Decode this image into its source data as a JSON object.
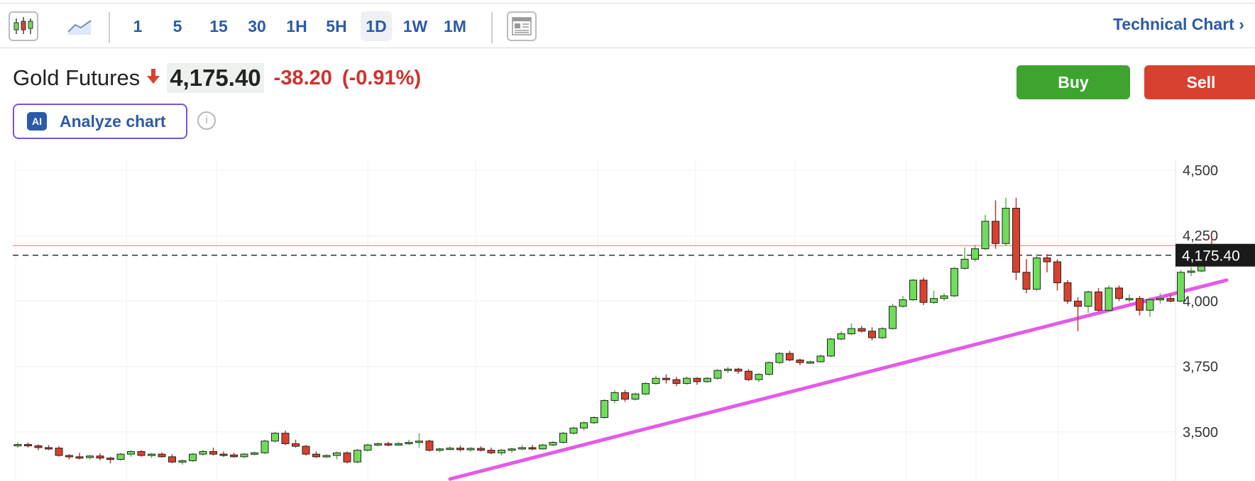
{
  "toolbar": {
    "icons": [
      "candlestick-icon",
      "area-chart-icon",
      "layout-icon"
    ],
    "intervals": [
      "1",
      "5",
      "15",
      "30",
      "1H",
      "5H",
      "1D",
      "1W",
      "1M"
    ],
    "active_interval": "1D",
    "technical_chart_label": "Technical Chart"
  },
  "instrument": {
    "name": "Gold Futures",
    "price": "4,175.40",
    "change": "-38.20",
    "change_pct": "(-0.91%)",
    "direction_icon": "arrow-down-icon"
  },
  "actions": {
    "buy": "Buy",
    "sell": "Sell"
  },
  "ai": {
    "badge": "AI",
    "label": "Analyze chart",
    "info_icon": "info-icon"
  },
  "colors": {
    "up": "#6fdc5a",
    "down": "#d9412f",
    "accent": "#2b5ba8",
    "trendline": "#e45ae8",
    "last_price_bg": "#1a1a1a"
  },
  "chart_data": {
    "type": "candlestick",
    "y_ticks": [
      "4,500",
      "4,250",
      "4,000",
      "3,750",
      "3,500"
    ],
    "ylim": [
      3320,
      4530
    ],
    "last_price_label": "4,175.40",
    "last_price": 4175.4,
    "resistance_level": 4212,
    "trendline": {
      "from_index": 42,
      "from_value": 3320,
      "to_index": 114,
      "to_value": 4080
    },
    "grid": true,
    "ohlc": [
      [
        3450,
        3460,
        3440,
        3452
      ],
      [
        3452,
        3460,
        3440,
        3447
      ],
      [
        3447,
        3452,
        3430,
        3440
      ],
      [
        3440,
        3450,
        3430,
        3438
      ],
      [
        3438,
        3445,
        3405,
        3410
      ],
      [
        3410,
        3415,
        3395,
        3405
      ],
      [
        3405,
        3420,
        3395,
        3402
      ],
      [
        3402,
        3412,
        3395,
        3408
      ],
      [
        3408,
        3418,
        3392,
        3400
      ],
      [
        3400,
        3405,
        3380,
        3395
      ],
      [
        3395,
        3420,
        3390,
        3415
      ],
      [
        3415,
        3430,
        3405,
        3425
      ],
      [
        3425,
        3430,
        3405,
        3410
      ],
      [
        3410,
        3420,
        3400,
        3415
      ],
      [
        3415,
        3422,
        3402,
        3405
      ],
      [
        3405,
        3415,
        3380,
        3385
      ],
      [
        3385,
        3395,
        3375,
        3390
      ],
      [
        3390,
        3420,
        3385,
        3415
      ],
      [
        3415,
        3432,
        3410,
        3425
      ],
      [
        3425,
        3440,
        3410,
        3415
      ],
      [
        3415,
        3425,
        3405,
        3412
      ],
      [
        3412,
        3420,
        3402,
        3405
      ],
      [
        3405,
        3420,
        3400,
        3415
      ],
      [
        3415,
        3425,
        3410,
        3420
      ],
      [
        3420,
        3470,
        3415,
        3465
      ],
      [
        3465,
        3500,
        3460,
        3495
      ],
      [
        3495,
        3505,
        3450,
        3455
      ],
      [
        3455,
        3470,
        3440,
        3445
      ],
      [
        3445,
        3450,
        3410,
        3415
      ],
      [
        3415,
        3425,
        3400,
        3405
      ],
      [
        3405,
        3415,
        3400,
        3410
      ],
      [
        3410,
        3425,
        3395,
        3420
      ],
      [
        3420,
        3425,
        3380,
        3385
      ],
      [
        3385,
        3435,
        3380,
        3430
      ],
      [
        3430,
        3455,
        3425,
        3450
      ],
      [
        3450,
        3460,
        3445,
        3455
      ],
      [
        3455,
        3462,
        3445,
        3452
      ],
      [
        3452,
        3462,
        3450,
        3455
      ],
      [
        3455,
        3470,
        3450,
        3460
      ],
      [
        3460,
        3495,
        3440,
        3465
      ],
      [
        3465,
        3470,
        3425,
        3430
      ],
      [
        3430,
        3440,
        3422,
        3435
      ],
      [
        3435,
        3445,
        3430,
        3438
      ],
      [
        3438,
        3448,
        3425,
        3432
      ],
      [
        3432,
        3442,
        3425,
        3437
      ],
      [
        3437,
        3445,
        3425,
        3430
      ],
      [
        3430,
        3440,
        3415,
        3420
      ],
      [
        3420,
        3435,
        3410,
        3430
      ],
      [
        3430,
        3440,
        3420,
        3435
      ],
      [
        3435,
        3450,
        3430,
        3440
      ],
      [
        3440,
        3450,
        3430,
        3435
      ],
      [
        3435,
        3455,
        3432,
        3450
      ],
      [
        3450,
        3465,
        3445,
        3460
      ],
      [
        3460,
        3500,
        3455,
        3495
      ],
      [
        3495,
        3520,
        3490,
        3515
      ],
      [
        3515,
        3540,
        3505,
        3535
      ],
      [
        3535,
        3560,
        3530,
        3555
      ],
      [
        3555,
        3625,
        3550,
        3620
      ],
      [
        3620,
        3660,
        3610,
        3650
      ],
      [
        3650,
        3660,
        3615,
        3625
      ],
      [
        3625,
        3650,
        3620,
        3645
      ],
      [
        3645,
        3690,
        3640,
        3685
      ],
      [
        3685,
        3715,
        3680,
        3705
      ],
      [
        3705,
        3720,
        3685,
        3700
      ],
      [
        3700,
        3710,
        3675,
        3685
      ],
      [
        3685,
        3712,
        3680,
        3705
      ],
      [
        3705,
        3708,
        3680,
        3692
      ],
      [
        3692,
        3710,
        3688,
        3705
      ],
      [
        3705,
        3740,
        3700,
        3735
      ],
      [
        3735,
        3748,
        3725,
        3740
      ],
      [
        3740,
        3745,
        3722,
        3732
      ],
      [
        3732,
        3740,
        3695,
        3700
      ],
      [
        3700,
        3725,
        3690,
        3720
      ],
      [
        3720,
        3770,
        3715,
        3765
      ],
      [
        3765,
        3805,
        3760,
        3800
      ],
      [
        3800,
        3810,
        3770,
        3775
      ],
      [
        3775,
        3780,
        3755,
        3765
      ],
      [
        3765,
        3772,
        3760,
        3768
      ],
      [
        3768,
        3795,
        3765,
        3790
      ],
      [
        3790,
        3860,
        3785,
        3855
      ],
      [
        3855,
        3885,
        3850,
        3875
      ],
      [
        3875,
        3915,
        3870,
        3895
      ],
      [
        3895,
        3905,
        3880,
        3885
      ],
      [
        3885,
        3900,
        3850,
        3860
      ],
      [
        3860,
        3900,
        3855,
        3895
      ],
      [
        3895,
        3990,
        3890,
        3980
      ],
      [
        3980,
        4020,
        3975,
        4005
      ],
      [
        4005,
        4085,
        4000,
        4080
      ],
      [
        4080,
        4090,
        3985,
        3995
      ],
      [
        3995,
        4040,
        3990,
        4010
      ],
      [
        4010,
        4030,
        4000,
        4020
      ],
      [
        4020,
        4130,
        4015,
        4125
      ],
      [
        4125,
        4205,
        4120,
        4160
      ],
      [
        4160,
        4215,
        4150,
        4200
      ],
      [
        4200,
        4330,
        4195,
        4305
      ],
      [
        4305,
        4385,
        4200,
        4220
      ],
      [
        4220,
        4395,
        4210,
        4355
      ],
      [
        4355,
        4395,
        4080,
        4110
      ],
      [
        4110,
        4160,
        4030,
        4045
      ],
      [
        4045,
        4180,
        4040,
        4165
      ],
      [
        4165,
        4180,
        4110,
        4150
      ],
      [
        4150,
        4160,
        4040,
        4070
      ],
      [
        4070,
        4080,
        3990,
        4000
      ],
      [
        4000,
        4015,
        3885,
        3980
      ],
      [
        3980,
        4040,
        3955,
        4035
      ],
      [
        4035,
        4050,
        3960,
        3965
      ],
      [
        3965,
        4060,
        3960,
        4050
      ],
      [
        4050,
        4060,
        4000,
        4010
      ],
      [
        4010,
        4025,
        3995,
        4010
      ],
      [
        4010,
        4020,
        3945,
        3965
      ],
      [
        3965,
        4015,
        3940,
        4005
      ],
      [
        4005,
        4030,
        3990,
        4010
      ],
      [
        4010,
        4025,
        3995,
        4000
      ],
      [
        4000,
        4120,
        3995,
        4110
      ],
      [
        4110,
        4130,
        4095,
        4115
      ],
      [
        4115,
        4200,
        4110,
        4195
      ],
      [
        4195,
        4258,
        4155,
        4175
      ]
    ]
  }
}
